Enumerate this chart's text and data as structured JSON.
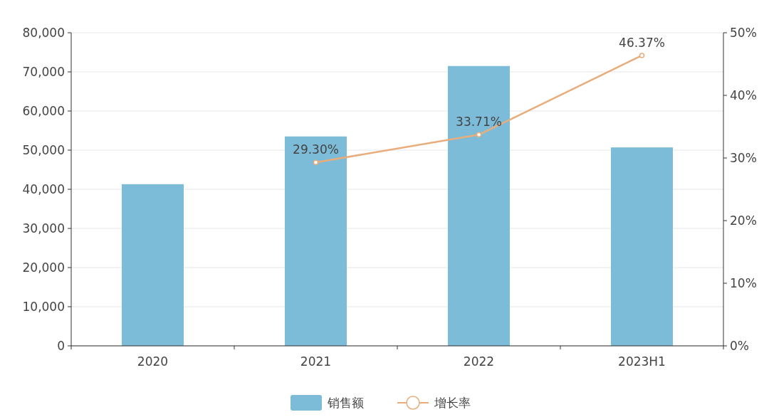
{
  "chart_data": {
    "type": "bar",
    "categories": [
      "2020",
      "2021",
      "2022",
      "2023H1"
    ],
    "series": [
      {
        "name": "销售额",
        "color": "#7dbcd9",
        "values": [
          41300,
          53500,
          71500,
          50700
        ]
      },
      {
        "name": "增长率",
        "type": "line",
        "axis": "y2",
        "color": "#e8ad7a",
        "marker": "circle",
        "values": [
          null,
          29.3,
          33.71,
          46.37
        ],
        "value_labels": [
          null,
          "29.30%",
          "33.71%",
          "46.37%"
        ]
      }
    ],
    "ylim": [
      0,
      80000
    ],
    "yticks": [
      {
        "value": 0,
        "label": "0"
      },
      {
        "value": 10000,
        "label": "10,000"
      },
      {
        "value": 20000,
        "label": "20,000"
      },
      {
        "value": 30000,
        "label": "30,000"
      },
      {
        "value": 40000,
        "label": "40,000"
      },
      {
        "value": 50000,
        "label": "50,000"
      },
      {
        "value": 60000,
        "label": "60,000"
      },
      {
        "value": 70000,
        "label": "70,000"
      },
      {
        "value": 80000,
        "label": "80,000"
      }
    ],
    "y2lim": [
      0,
      50
    ],
    "y2ticks": [
      {
        "value": 0,
        "label": "0%"
      },
      {
        "value": 10,
        "label": "10%"
      },
      {
        "value": 20,
        "label": "20%"
      },
      {
        "value": 30,
        "label": "30%"
      },
      {
        "value": 40,
        "label": "40%"
      },
      {
        "value": 50,
        "label": "50%"
      }
    ],
    "grid": "y",
    "legend": "bottom"
  }
}
